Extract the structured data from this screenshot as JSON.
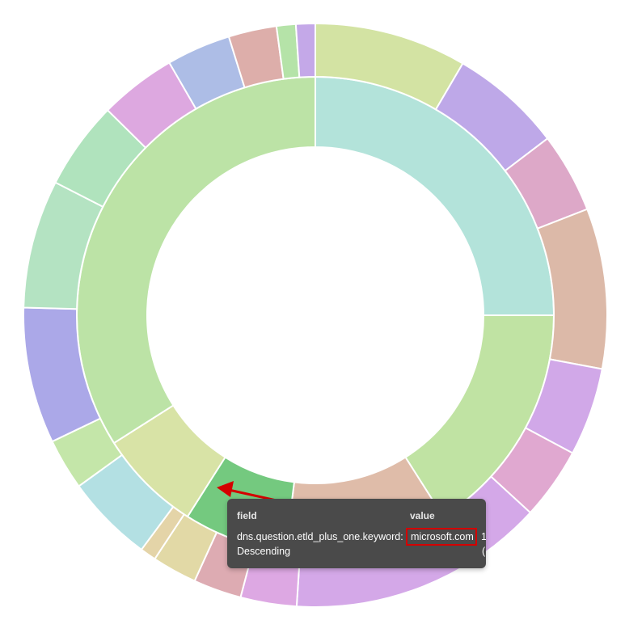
{
  "chart_data": {
    "type": "sunburst",
    "rings": [
      {
        "level": "inner",
        "segments": [
          {
            "value": 25,
            "color": "#b3e3da"
          },
          {
            "value": 16,
            "color": "#c0e3a3"
          },
          {
            "value": 11,
            "color": "#dfbca9"
          },
          {
            "value": 7,
            "color": "#74c97f"
          },
          {
            "value": 7,
            "color": "#d8e3a6"
          },
          {
            "value": 34,
            "color": "#bce3a6"
          }
        ]
      },
      {
        "level": "outer",
        "segments": [
          {
            "value": 9.5,
            "color": "#d3e3a3"
          },
          {
            "value": 7.0,
            "color": "#bea8e8"
          },
          {
            "value": 5.0,
            "color": "#dda8c8"
          },
          {
            "value": 10.0,
            "color": "#dcb9a8"
          },
          {
            "value": 5.5,
            "color": "#d1a8e8"
          },
          {
            "value": 4.5,
            "color": "#e0a8d0"
          },
          {
            "value": 16.0,
            "color": "#d4a8e8"
          },
          {
            "value": 3.5,
            "color": "#dda8e3"
          },
          {
            "value": 3.0,
            "color": "#ddabb2"
          },
          {
            "value": 2.8,
            "color": "#e2d9a6"
          },
          {
            "value": 1.0,
            "color": "#e4d4a8"
          },
          {
            "value": 5.5,
            "color": "#b3e0e3"
          },
          {
            "value": 3.2,
            "color": "#c4e6a9"
          },
          {
            "value": 8.5,
            "color": "#aba8e8"
          },
          {
            "value": 8.0,
            "color": "#b4e3c2"
          },
          {
            "value": 5.5,
            "color": "#b0e3bd"
          },
          {
            "value": 4.8,
            "color": "#dda8e0"
          },
          {
            "value": 4.0,
            "color": "#adbde6"
          },
          {
            "value": 3.0,
            "color": "#ddaeaa"
          },
          {
            "value": 1.2,
            "color": "#b5e3a8"
          },
          {
            "value": 1.2,
            "color": "#c4a8e8"
          }
        ]
      }
    ]
  },
  "tooltip": {
    "header_field": "field",
    "header_value": "value",
    "row1_field": "dns.question.etld_plus_one.keyword:",
    "row1_value": "microsoft.com",
    "row1_extra": "1",
    "row2_field": "Descending",
    "row2_extra": "(",
    "highlight_color": "#d40000"
  },
  "annotation_arrow_color": "#d40000"
}
